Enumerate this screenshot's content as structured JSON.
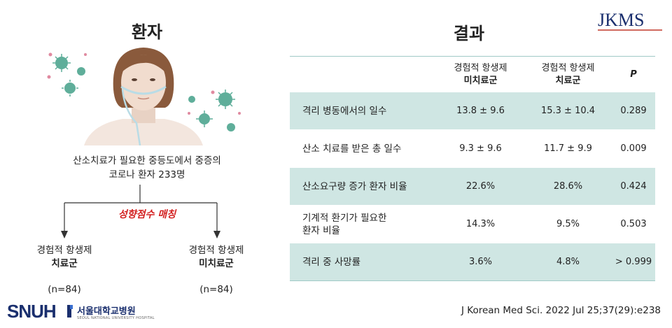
{
  "left": {
    "title": "환자",
    "patient_line1": "산소치료가 필요한 중등도에서 중증의",
    "patient_line2": "코로나 환자 233명",
    "matching_label": "성향점수 매칭",
    "group_a": {
      "line1": "경험적 항생제",
      "line2": "치료군",
      "n": "(n=84)"
    },
    "group_b": {
      "line1": "경험적 항생제",
      "line2": "미치료군",
      "n": "(n=84)"
    }
  },
  "right": {
    "title": "결과",
    "journal_logo": "JKMS",
    "columns": [
      {
        "line1": "경험적 항생제",
        "line2": "미치료군"
      },
      {
        "line1": "경험적 항생제",
        "line2": "치료군"
      },
      {
        "line1": "P"
      }
    ],
    "rows": [
      {
        "label": "격리 병동에서의 일수",
        "untreated": "13.8 ± 9.6",
        "treated": "15.3 ± 10.4",
        "p": "0.289"
      },
      {
        "label": "산소 치료를 받은 총 일수",
        "untreated": "9.3 ± 9.6",
        "treated": "11.7 ± 9.9",
        "p": "0.009"
      },
      {
        "label": "산소요구량 증가 환자 비율",
        "untreated": "22.6%",
        "treated": "28.6%",
        "p": "0.424"
      },
      {
        "label_line1": "기계적 환기가 필요한",
        "label_line2": "환자 비율",
        "untreated": "14.3%",
        "treated": "9.5%",
        "p": "0.503"
      },
      {
        "label": "격리 중 사망률",
        "untreated": "3.6%",
        "treated": "4.8%",
        "p": "> 0.999"
      }
    ],
    "citation": "J Korean Med Sci. 2022 Jul 25;37(29):e238"
  },
  "footer": {
    "logo_text": "SNUH",
    "logo_korean": "서울대학교병원",
    "logo_english": "SEOUL NATIONAL UNIVERSITY HOSPITAL"
  },
  "colors": {
    "shaded_row": "#cfe6e3",
    "table_rule": "#9fc9c6",
    "matching_label": "#d32020",
    "virus": "#5fae9a",
    "brand_navy": "#1a2f6e"
  }
}
